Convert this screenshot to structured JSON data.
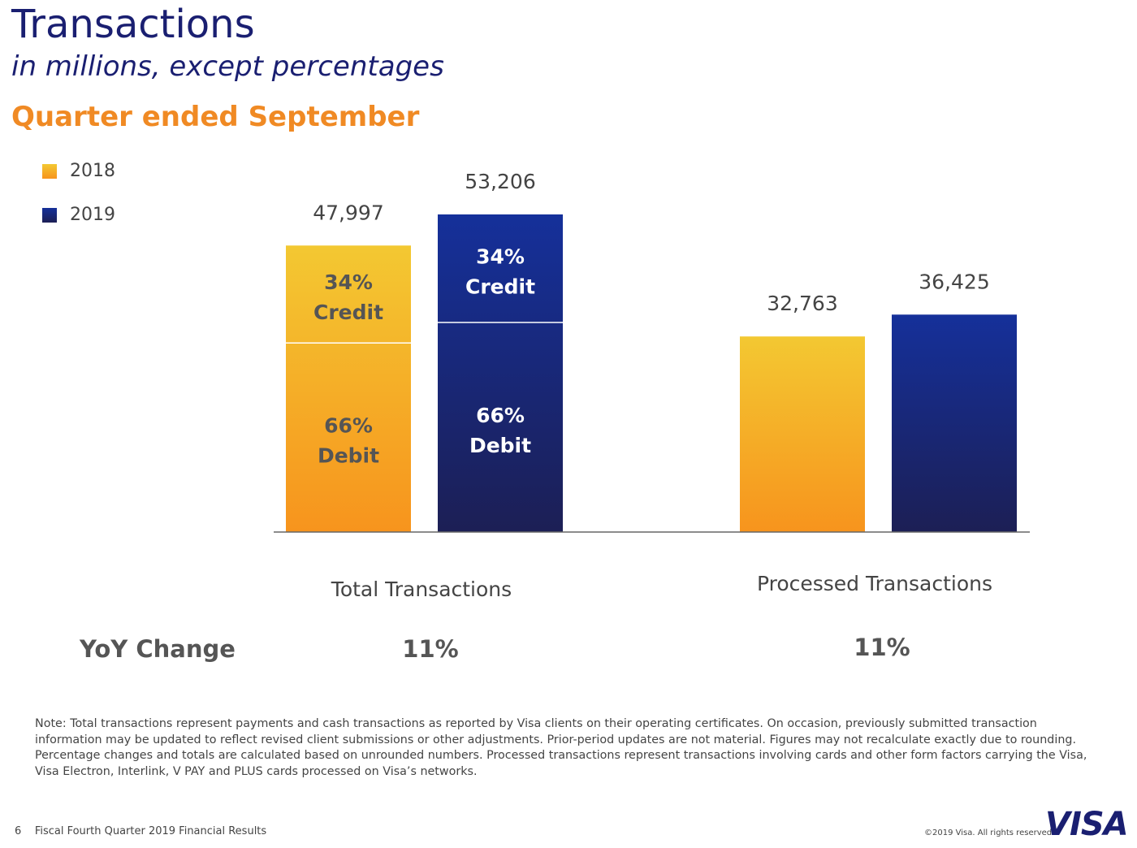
{
  "header": {
    "title": "Transactions",
    "subtitle": "in millions, except percentages",
    "period": "Quarter ended September"
  },
  "legend": [
    {
      "label": "2018"
    },
    {
      "label": "2019"
    }
  ],
  "colors": {
    "gold_top": "#f3c832",
    "gold_bottom": "#f7941d",
    "navy_top": "#15309a",
    "navy_bottom": "#1c1f55",
    "title": "#1a1f71",
    "period": "#f08a24"
  },
  "chart_data": {
    "type": "bar",
    "categories": [
      "Total Transactions",
      "Processed Transactions"
    ],
    "series": [
      {
        "name": "2018",
        "values": [
          47997,
          32763
        ],
        "value_labels": [
          "47,997",
          "32,763"
        ]
      },
      {
        "name": "2019",
        "values": [
          53206,
          36425
        ],
        "value_labels": [
          "53,206",
          "36,425"
        ]
      }
    ],
    "stacked_breakdown": {
      "category": "Total Transactions",
      "segments": [
        {
          "name": "Credit",
          "share": 0.34,
          "label_pct": "34%",
          "label_name": "Credit"
        },
        {
          "name": "Debit",
          "share": 0.66,
          "label_pct": "66%",
          "label_name": "Debit"
        }
      ]
    },
    "ylim": [
      0,
      60000
    ],
    "grid": false,
    "legend_position": "top-left"
  },
  "yoy": {
    "label": "YoY Change",
    "values": [
      "11%",
      "11%"
    ]
  },
  "note": "Note: Total transactions represent payments and cash transactions as reported by Visa clients on their operating certificates. On occasion, previously submitted transaction information may be updated to reflect revised client submissions or other adjustments. Prior-period updates are not material. Figures may not recalculate exactly due to rounding. Percentage changes and totals are calculated based on unrounded numbers. Processed transactions represent transactions involving cards and other form factors carrying the Visa, Visa Electron, Interlink, V PAY and PLUS cards processed on Visa’s networks.",
  "footer": {
    "page_number": "6",
    "report": "Fiscal Fourth Quarter 2019 Financial Results",
    "copyright": "©2019 Visa. All rights reserved.",
    "logo_text": "VISA"
  }
}
